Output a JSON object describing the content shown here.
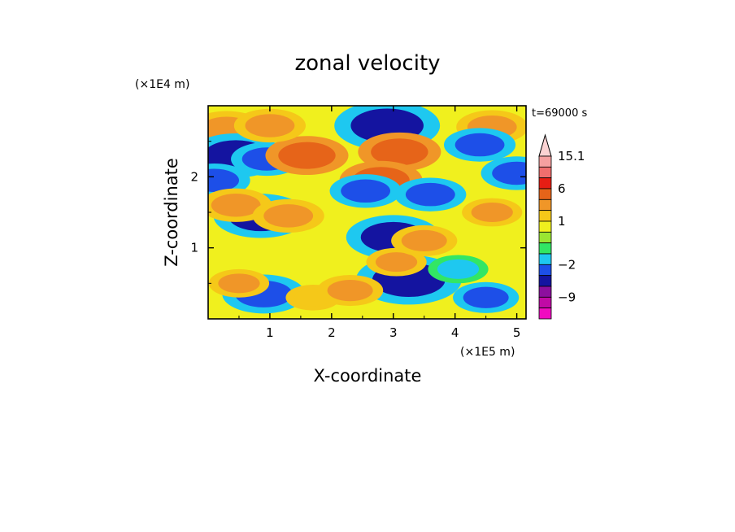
{
  "chart_data": {
    "type": "heatmap",
    "title": "zonal velocity",
    "xlabel": "X-coordinate",
    "ylabel": "Z-coordinate",
    "x_units": "(×1E5 m)",
    "y_units": "(×1E4 m)",
    "time_label": "t=69000 s",
    "xlim": [
      0,
      5.15
    ],
    "ylim": [
      0,
      3.0
    ],
    "x_ticks": [
      {
        "value": 1,
        "label": "1"
      },
      {
        "value": 2,
        "label": "2"
      },
      {
        "value": 3,
        "label": "3"
      },
      {
        "value": 4,
        "label": "4"
      },
      {
        "value": 5,
        "label": "5"
      }
    ],
    "y_ticks": [
      {
        "value": 1,
        "label": "1"
      },
      {
        "value": 2,
        "label": "2"
      }
    ],
    "colorbar": {
      "levels": [
        {
          "lower": null,
          "color": "#f00cc0"
        },
        {
          "lower": -12,
          "color": "#c00aa5"
        },
        {
          "lower": -9,
          "color": "#8c0f9e"
        },
        {
          "lower": -6,
          "color": "#1414a0"
        },
        {
          "lower": -4,
          "color": "#1d4fe8"
        },
        {
          "lower": -2,
          "color": "#1ec8f0"
        },
        {
          "lower": -1,
          "color": "#32e664"
        },
        {
          "lower": 0,
          "color": "#9ae632"
        },
        {
          "lower": 0.5,
          "color": "#f0f01e"
        },
        {
          "lower": 1,
          "color": "#f5c819"
        },
        {
          "lower": 2,
          "color": "#f09628"
        },
        {
          "lower": 4,
          "color": "#e66419"
        },
        {
          "lower": 6,
          "color": "#e61e14"
        },
        {
          "lower": 9,
          "color": "#f06e6e"
        },
        {
          "lower": 12,
          "color": "#f5a0a0"
        },
        {
          "lower": 15.1,
          "color": "#fad2d2"
        }
      ],
      "labels": [
        {
          "value": 15.1,
          "label": "15.1"
        },
        {
          "value": 6,
          "label": "6"
        },
        {
          "value": 1,
          "label": "1"
        },
        {
          "value": -2,
          "label": "−2"
        },
        {
          "value": -9,
          "label": "−9"
        }
      ]
    },
    "field_features": [
      {
        "x": 0.3,
        "z": 2.67,
        "value": 3.5
      },
      {
        "x": 0.45,
        "z": 2.3,
        "value": -5
      },
      {
        "x": 0.1,
        "z": 1.95,
        "value": -3
      },
      {
        "x": 0.95,
        "z": 2.25,
        "value": -3
      },
      {
        "x": 0.85,
        "z": 1.45,
        "value": -5
      },
      {
        "x": 0.45,
        "z": 1.6,
        "value": 3
      },
      {
        "x": 1.3,
        "z": 1.45,
        "value": 3
      },
      {
        "x": 1.6,
        "z": 2.3,
        "value": 4
      },
      {
        "x": 1.0,
        "z": 2.72,
        "value": 3
      },
      {
        "x": 2.9,
        "z": 2.72,
        "value": -6
      },
      {
        "x": 3.1,
        "z": 2.35,
        "value": 4
      },
      {
        "x": 2.8,
        "z": 1.95,
        "value": 4
      },
      {
        "x": 2.55,
        "z": 1.8,
        "value": -3
      },
      {
        "x": 3.6,
        "z": 1.75,
        "value": -3
      },
      {
        "x": 3.0,
        "z": 1.15,
        "value": -5
      },
      {
        "x": 3.25,
        "z": 0.55,
        "value": -6
      },
      {
        "x": 3.05,
        "z": 0.8,
        "value": 2
      },
      {
        "x": 3.5,
        "z": 1.1,
        "value": 2.5
      },
      {
        "x": 4.6,
        "z": 2.7,
        "value": 3
      },
      {
        "x": 4.4,
        "z": 2.45,
        "value": -3
      },
      {
        "x": 5.0,
        "z": 2.05,
        "value": -3
      },
      {
        "x": 4.6,
        "z": 1.5,
        "value": 2
      },
      {
        "x": 4.5,
        "z": 0.3,
        "value": -2.5
      },
      {
        "x": 4.05,
        "z": 0.7,
        "value": -2
      },
      {
        "x": 0.9,
        "z": 0.35,
        "value": -4
      },
      {
        "x": 0.5,
        "z": 0.5,
        "value": 2
      },
      {
        "x": 1.7,
        "z": 0.3,
        "value": 1.5
      },
      {
        "x": 2.3,
        "z": 0.4,
        "value": 2.5
      }
    ]
  }
}
